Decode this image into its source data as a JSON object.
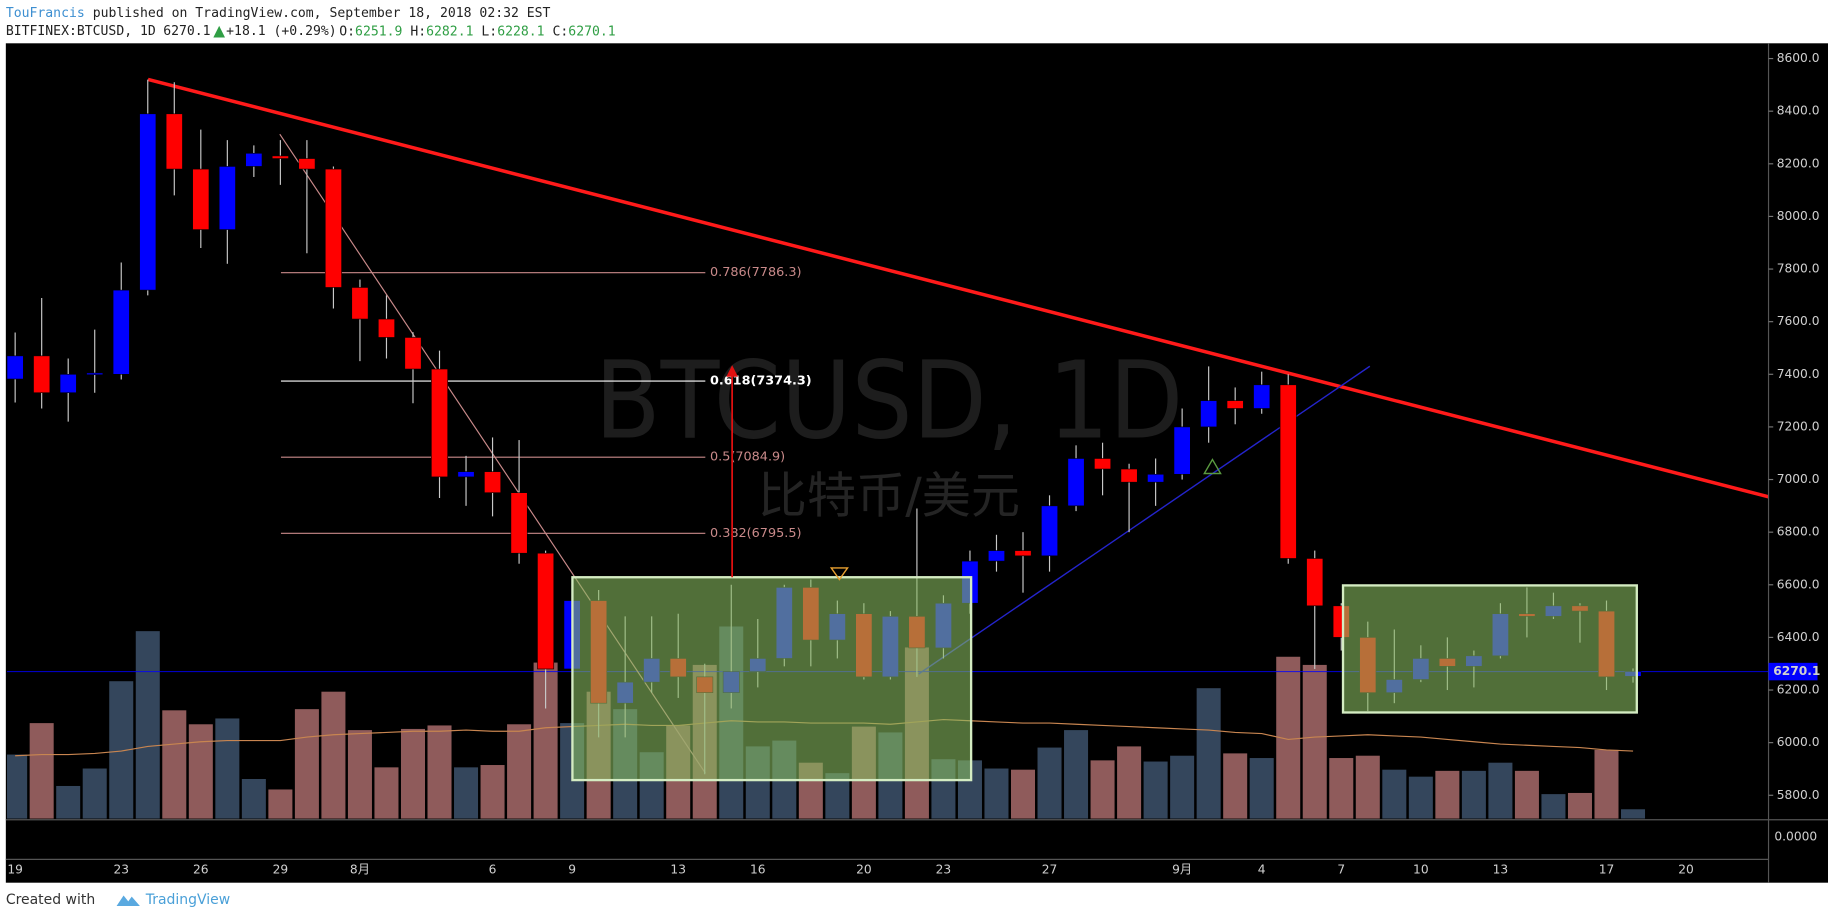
{
  "header": {
    "author": "TouFrancis",
    "published": "published on TradingView.com, September 18, 2018 02:32 EST",
    "symbol": "BITFINEX:BTCUSD, 1D",
    "change": "+18.1 (+0.29%)",
    "ohlc_labels": [
      "O:",
      "H:",
      "L:",
      "C:"
    ]
  },
  "chart_data": {
    "type": "candlestick",
    "watermark": "BTCUSD, 1D",
    "watermark_subtitle": "比特币/美元",
    "x": [
      "07-19",
      "07-20",
      "07-21",
      "07-22",
      "07-23",
      "07-24",
      "07-25",
      "07-26",
      "07-27",
      "07-28",
      "07-29",
      "07-30",
      "07-31",
      "08-01",
      "08-02",
      "08-03",
      "08-04",
      "08-05",
      "08-06",
      "08-07",
      "08-08",
      "08-09",
      "08-10",
      "08-11",
      "08-12",
      "08-13",
      "08-14",
      "08-15",
      "08-16",
      "08-17",
      "08-18",
      "08-19",
      "08-20",
      "08-21",
      "08-22",
      "08-23",
      "08-24",
      "08-25",
      "08-26",
      "08-27",
      "08-28",
      "08-29",
      "08-30",
      "08-31",
      "09-01",
      "09-02",
      "09-03",
      "09-04",
      "09-05",
      "09-06",
      "09-07",
      "09-08",
      "09-09",
      "09-10",
      "09-11",
      "09-12",
      "09-13",
      "09-14",
      "09-15",
      "09-16",
      "09-17",
      "09-18"
    ],
    "open": [
      7382,
      7470,
      7330,
      7400,
      7400,
      7720,
      8390,
      8180,
      7950,
      8190,
      8230,
      8220,
      8180,
      7730,
      7610,
      7540,
      7420,
      7010,
      7030,
      6950,
      6720,
      6280,
      6540,
      6150,
      6230,
      6320,
      6250,
      6190,
      6270,
      6320,
      6590,
      6390,
      6490,
      6250,
      6480,
      6360,
      6530,
      6690,
      6730,
      6710,
      6900,
      7080,
      7040,
      6990,
      7020,
      7200,
      7300,
      7270,
      7360,
      6700,
      6520,
      6400,
      6190,
      6240,
      6320,
      6290,
      6330,
      6490,
      6480,
      6520,
      6500,
      6251.9
    ],
    "high": [
      7559,
      7690,
      7460,
      7570,
      7825,
      8520,
      8510,
      8330,
      8290,
      8270,
      8290,
      8290,
      8190,
      7760,
      7700,
      7560,
      7490,
      7090,
      7160,
      7150,
      6730,
      6620,
      6580,
      6480,
      6480,
      6490,
      6300,
      6600,
      6470,
      6600,
      6620,
      6540,
      6530,
      6500,
      6890,
      6560,
      6730,
      6790,
      6800,
      6940,
      7130,
      7140,
      7060,
      7080,
      7270,
      7430,
      7350,
      7410,
      7400,
      6730,
      6530,
      6460,
      6430,
      6370,
      6400,
      6350,
      6530,
      6590,
      6570,
      6530,
      6540,
      6282.1
    ],
    "low": [
      7293,
      7270,
      7220,
      7330,
      7380,
      7700,
      8080,
      7880,
      7820,
      8150,
      8120,
      7860,
      7650,
      7450,
      7460,
      7290,
      6930,
      6900,
      6860,
      6680,
      6130,
      6200,
      6020,
      6020,
      6190,
      6170,
      5880,
      6130,
      6210,
      6290,
      6290,
      6320,
      6240,
      6240,
      6250,
      6320,
      6490,
      6650,
      6570,
      6650,
      6880,
      6940,
      6800,
      6900,
      7000,
      7140,
      7210,
      7250,
      6680,
      6280,
      6350,
      6120,
      6150,
      6230,
      6200,
      6210,
      6320,
      6400,
      6470,
      6380,
      6200,
      6228.1
    ],
    "close": [
      7470,
      7330,
      7400,
      7405,
      7720,
      8390,
      8180,
      7950,
      8190,
      8240,
      8220,
      8180,
      7730,
      7610,
      7540,
      7420,
      7010,
      7030,
      6950,
      6720,
      6280,
      6540,
      6150,
      6230,
      6320,
      6250,
      6190,
      6270,
      6320,
      6590,
      6390,
      6490,
      6250,
      6480,
      6360,
      6530,
      6690,
      6730,
      6710,
      6900,
      7080,
      7040,
      6990,
      7020,
      7200,
      7300,
      7270,
      7360,
      6700,
      6520,
      6400,
      6190,
      6240,
      6320,
      6290,
      6330,
      6490,
      6480,
      6520,
      6500,
      6250,
      6270.1
    ],
    "up_color": "#0000ff",
    "down_color": "#ff0000",
    "wick_color": "#c8c8c8",
    "volume": [
      55,
      82,
      28,
      43,
      118,
      161,
      93,
      81,
      86,
      34,
      25,
      94,
      109,
      76,
      44,
      77,
      80,
      44,
      46,
      81,
      134,
      82,
      109,
      94,
      57,
      80,
      132,
      165,
      62,
      67,
      48,
      39,
      79,
      74,
      147,
      51,
      50,
      43,
      42,
      61,
      76,
      50,
      62,
      49,
      54,
      112,
      56,
      52,
      139,
      132,
      52,
      54,
      42,
      36,
      41,
      41,
      48,
      41,
      21,
      22,
      59,
      8
    ],
    "volume_ma": [
      54,
      55,
      55,
      56,
      58,
      62,
      64,
      66,
      67,
      67,
      67,
      70,
      72,
      73,
      74,
      75,
      75,
      76,
      75,
      75,
      78,
      79,
      80,
      81,
      80,
      80,
      82,
      84,
      83,
      83,
      82,
      82,
      82,
      81,
      83,
      85,
      84,
      83,
      82,
      82,
      81,
      80,
      79,
      78,
      77,
      76,
      74,
      73,
      68,
      70,
      71,
      72,
      71,
      70,
      68,
      66,
      64,
      63,
      62,
      61,
      59,
      58
    ],
    "volume_up_color": "#34465c",
    "volume_down_color": "#8f5b5b",
    "volume_ma_color": "#c88550",
    "vlim": [
      0,
      666
    ],
    "xlim": [
      "07-19",
      "09-23"
    ],
    "xticks": [
      {
        "value": "07-19",
        "label": "19"
      },
      {
        "value": "07-23",
        "label": "23"
      },
      {
        "value": "07-26",
        "label": "26"
      },
      {
        "value": "07-29",
        "label": "29"
      },
      {
        "value": "08-01",
        "label": "8月"
      },
      {
        "value": "08-06",
        "label": "6"
      },
      {
        "value": "08-09",
        "label": "9"
      },
      {
        "value": "08-13",
        "label": "13"
      },
      {
        "value": "08-16",
        "label": "16"
      },
      {
        "value": "08-20",
        "label": "20"
      },
      {
        "value": "08-23",
        "label": "23"
      },
      {
        "value": "08-27",
        "label": "27"
      },
      {
        "value": "09-01",
        "label": "9月"
      },
      {
        "value": "09-04",
        "label": "4"
      },
      {
        "value": "09-07",
        "label": "7"
      },
      {
        "value": "09-10",
        "label": "10"
      },
      {
        "value": "09-13",
        "label": "13"
      },
      {
        "value": "09-17",
        "label": "17"
      },
      {
        "value": "09-20",
        "label": "20"
      }
    ],
    "ylim": [
      5707,
      8658
    ],
    "yticks": [
      {
        "value": 5800,
        "label": "5800.0"
      },
      {
        "value": 6000,
        "label": "6000.0"
      },
      {
        "value": 6200,
        "label": "6200.0"
      },
      {
        "value": 6400,
        "label": "6400.0"
      },
      {
        "value": 6600,
        "label": "6600.0"
      },
      {
        "value": 6800,
        "label": "6800.0"
      },
      {
        "value": 7000,
        "label": "7000.0"
      },
      {
        "value": 7200,
        "label": "7200.0"
      },
      {
        "value": 7400,
        "label": "7400.0"
      },
      {
        "value": 7600,
        "label": "7600.0"
      },
      {
        "value": 7800,
        "label": "7800.0"
      },
      {
        "value": 8000,
        "label": "8000.0"
      },
      {
        "value": 8200,
        "label": "8200.0"
      },
      {
        "value": 8400,
        "label": "8400.0"
      },
      {
        "value": 8600,
        "label": "8600.0"
      }
    ],
    "last_price": 6270.1,
    "last_price_color": "#0000ff",
    "fib_levels": [
      {
        "label": "0.786(7786.3)",
        "value": 7786.3,
        "color": "#c98a8a"
      },
      {
        "label": "0.618(7374.3)",
        "value": 7374.3,
        "color": "#ffffff"
      },
      {
        "label": "0.5(7084.9)",
        "value": 7084.9,
        "color": "#c98a8a"
      },
      {
        "label": "0.382(6795.5)",
        "value": 6795.5,
        "color": "#c98a8a"
      }
    ],
    "lower_pane_yticks": [
      {
        "value": 0,
        "label": "0.0000"
      }
    ]
  },
  "footer": {
    "created": "Created with",
    "brand": "TradingView"
  }
}
